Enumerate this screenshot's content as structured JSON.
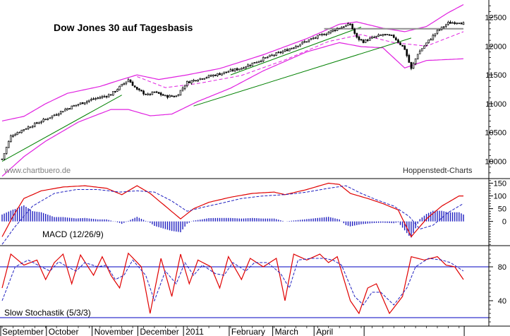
{
  "chart_data": {
    "type": "candlestick",
    "title": "Dow Jones 30 auf Tagesbasis",
    "watermark": "www.chartbuero.de",
    "source": "Hoppenstedt-Charts",
    "months": [
      "September",
      "October",
      "November",
      "December",
      "2011",
      "February",
      "March",
      "April"
    ],
    "colors": {
      "candle": "#000000",
      "bollinger": "#e020e0",
      "trend": "#008000",
      "resistance": "#909090",
      "macd": "#e00000",
      "signal": "#2020c0",
      "histogram": "#2020c0",
      "stoch_k": "#e00000",
      "stoch_d": "#2020c0",
      "stoch_level": "#0000c0"
    },
    "panels": [
      {
        "id": "price",
        "yticks": [
          "10000",
          "10500",
          "11000",
          "11500",
          "12000",
          "12500"
        ],
        "ylim": [
          9700,
          12800
        ],
        "anchors": [
          [
            0,
            10040
          ],
          [
            4,
            10440
          ],
          [
            10,
            10560
          ],
          [
            20,
            10730
          ],
          [
            30,
            10920
          ],
          [
            40,
            11060
          ],
          [
            50,
            11160
          ],
          [
            55,
            11320
          ],
          [
            58,
            11420
          ],
          [
            62,
            11240
          ],
          [
            67,
            11150
          ],
          [
            70,
            11200
          ],
          [
            75,
            11130
          ],
          [
            80,
            11130
          ],
          [
            85,
            11370
          ],
          [
            90,
            11430
          ],
          [
            100,
            11520
          ],
          [
            110,
            11620
          ],
          [
            120,
            11780
          ],
          [
            130,
            11920
          ],
          [
            140,
            12090
          ],
          [
            150,
            12240
          ],
          [
            155,
            12320
          ],
          [
            160,
            12380
          ],
          [
            163,
            12140
          ],
          [
            166,
            12080
          ],
          [
            170,
            12140
          ],
          [
            175,
            12200
          ],
          [
            180,
            12160
          ],
          [
            185,
            11950
          ],
          [
            188,
            11600
          ],
          [
            191,
            11870
          ],
          [
            195,
            12050
          ],
          [
            200,
            12260
          ],
          [
            205,
            12400
          ],
          [
            210,
            12420
          ],
          [
            212,
            12390
          ]
        ],
        "boll_upper": [
          [
            0,
            10700
          ],
          [
            10,
            10780
          ],
          [
            20,
            11000
          ],
          [
            30,
            11180
          ],
          [
            45,
            11300
          ],
          [
            55,
            11420
          ],
          [
            62,
            11500
          ],
          [
            72,
            11420
          ],
          [
            85,
            11500
          ],
          [
            100,
            11610
          ],
          [
            120,
            11850
          ],
          [
            140,
            12130
          ],
          [
            155,
            12380
          ],
          [
            163,
            12420
          ],
          [
            175,
            12310
          ],
          [
            185,
            12250
          ],
          [
            195,
            12340
          ],
          [
            205,
            12580
          ],
          [
            212,
            12720
          ]
        ],
        "boll_lower": [
          [
            0,
            9740
          ],
          [
            10,
            10080
          ],
          [
            20,
            10350
          ],
          [
            35,
            10680
          ],
          [
            50,
            10900
          ],
          [
            58,
            10900
          ],
          [
            68,
            10790
          ],
          [
            78,
            10820
          ],
          [
            90,
            11040
          ],
          [
            105,
            11270
          ],
          [
            120,
            11570
          ],
          [
            140,
            11900
          ],
          [
            155,
            12060
          ],
          [
            165,
            11990
          ],
          [
            175,
            11970
          ],
          [
            185,
            11620
          ],
          [
            195,
            11750
          ],
          [
            212,
            11780
          ]
        ],
        "boll_mid": [
          [
            62,
            11470
          ],
          [
            75,
            11280
          ],
          [
            90,
            11350
          ],
          [
            110,
            11490
          ],
          [
            130,
            11760
          ],
          [
            150,
            12080
          ],
          [
            165,
            12200
          ],
          [
            180,
            12060
          ],
          [
            195,
            12000
          ],
          [
            212,
            12250
          ]
        ],
        "trendlines": [
          [
            [
              0,
              10000
            ],
            [
              55,
              11150
            ]
          ],
          [
            [
              88,
              10960
            ],
            [
              188,
              12140
            ]
          ],
          [
            [
              105,
              11500
            ],
            [
              165,
              12330
            ]
          ]
        ],
        "resistance": [
          [
            148,
            12300
          ],
          [
            212,
            12300
          ]
        ]
      },
      {
        "id": "macd",
        "label": "MACD (12/26/9)",
        "yticks": [
          "0",
          "50",
          "100",
          "150"
        ],
        "ylim": [
          -95,
          168
        ],
        "macd": [
          [
            0,
            -60
          ],
          [
            5,
            20
          ],
          [
            10,
            90
          ],
          [
            18,
            120
          ],
          [
            28,
            135
          ],
          [
            38,
            140
          ],
          [
            48,
            130
          ],
          [
            55,
            105
          ],
          [
            62,
            140
          ],
          [
            68,
            110
          ],
          [
            75,
            60
          ],
          [
            82,
            10
          ],
          [
            88,
            50
          ],
          [
            95,
            75
          ],
          [
            105,
            95
          ],
          [
            115,
            110
          ],
          [
            125,
            115
          ],
          [
            130,
            105
          ],
          [
            140,
            125
          ],
          [
            150,
            150
          ],
          [
            155,
            145
          ],
          [
            160,
            110
          ],
          [
            168,
            90
          ],
          [
            175,
            70
          ],
          [
            182,
            45
          ],
          [
            188,
            -60
          ],
          [
            195,
            10
          ],
          [
            202,
            60
          ],
          [
            210,
            100
          ],
          [
            212,
            100
          ]
        ],
        "signal": [
          [
            0,
            -90
          ],
          [
            6,
            -20
          ],
          [
            14,
            60
          ],
          [
            24,
            110
          ],
          [
            34,
            125
          ],
          [
            44,
            125
          ],
          [
            54,
            115
          ],
          [
            62,
            120
          ],
          [
            70,
            115
          ],
          [
            78,
            80
          ],
          [
            85,
            40
          ],
          [
            92,
            55
          ],
          [
            100,
            70
          ],
          [
            110,
            90
          ],
          [
            120,
            100
          ],
          [
            130,
            105
          ],
          [
            140,
            115
          ],
          [
            150,
            130
          ],
          [
            158,
            140
          ],
          [
            165,
            110
          ],
          [
            172,
            85
          ],
          [
            180,
            60
          ],
          [
            187,
            20
          ],
          [
            192,
            -30
          ],
          [
            198,
            -15
          ],
          [
            205,
            35
          ],
          [
            212,
            70
          ]
        ]
      },
      {
        "id": "stoch",
        "label": "Slow Stochastik (5/3/3)",
        "yticks": [
          "40",
          "80"
        ],
        "ylim": [
          10,
          105
        ],
        "levels": [
          80,
          20
        ],
        "k": [
          [
            0,
            55
          ],
          [
            4,
            95
          ],
          [
            10,
            82
          ],
          [
            16,
            88
          ],
          [
            20,
            65
          ],
          [
            24,
            85
          ],
          [
            28,
            95
          ],
          [
            32,
            60
          ],
          [
            36,
            94
          ],
          [
            42,
            70
          ],
          [
            46,
            92
          ],
          [
            50,
            70
          ],
          [
            54,
            55
          ],
          [
            58,
            96
          ],
          [
            64,
            80
          ],
          [
            68,
            25
          ],
          [
            73,
            90
          ],
          [
            78,
            45
          ],
          [
            82,
            95
          ],
          [
            86,
            60
          ],
          [
            90,
            88
          ],
          [
            96,
            80
          ],
          [
            100,
            55
          ],
          [
            104,
            92
          ],
          [
            110,
            65
          ],
          [
            114,
            90
          ],
          [
            120,
            80
          ],
          [
            126,
            90
          ],
          [
            130,
            40
          ],
          [
            134,
            95
          ],
          [
            140,
            88
          ],
          [
            146,
            95
          ],
          [
            150,
            85
          ],
          [
            154,
            92
          ],
          [
            160,
            40
          ],
          [
            164,
            25
          ],
          [
            168,
            55
          ],
          [
            172,
            60
          ],
          [
            178,
            25
          ],
          [
            184,
            45
          ],
          [
            188,
            92
          ],
          [
            194,
            88
          ],
          [
            200,
            92
          ],
          [
            204,
            82
          ],
          [
            208,
            80
          ],
          [
            212,
            65
          ]
        ],
        "d": [
          [
            0,
            40
          ],
          [
            6,
            80
          ],
          [
            12,
            88
          ],
          [
            18,
            80
          ],
          [
            22,
            75
          ],
          [
            26,
            86
          ],
          [
            30,
            80
          ],
          [
            34,
            75
          ],
          [
            38,
            85
          ],
          [
            44,
            80
          ],
          [
            48,
            82
          ],
          [
            52,
            65
          ],
          [
            56,
            70
          ],
          [
            60,
            88
          ],
          [
            66,
            70
          ],
          [
            70,
            40
          ],
          [
            75,
            75
          ],
          [
            80,
            60
          ],
          [
            84,
            85
          ],
          [
            88,
            70
          ],
          [
            92,
            82
          ],
          [
            98,
            72
          ],
          [
            102,
            70
          ],
          [
            106,
            85
          ],
          [
            112,
            75
          ],
          [
            116,
            85
          ],
          [
            122,
            85
          ],
          [
            128,
            72
          ],
          [
            132,
            55
          ],
          [
            136,
            88
          ],
          [
            142,
            90
          ],
          [
            148,
            90
          ],
          [
            152,
            88
          ],
          [
            156,
            82
          ],
          [
            162,
            45
          ],
          [
            166,
            35
          ],
          [
            170,
            50
          ],
          [
            174,
            50
          ],
          [
            180,
            35
          ],
          [
            186,
            55
          ],
          [
            190,
            80
          ],
          [
            196,
            90
          ],
          [
            202,
            88
          ],
          [
            206,
            85
          ],
          [
            212,
            75
          ]
        ]
      }
    ]
  }
}
